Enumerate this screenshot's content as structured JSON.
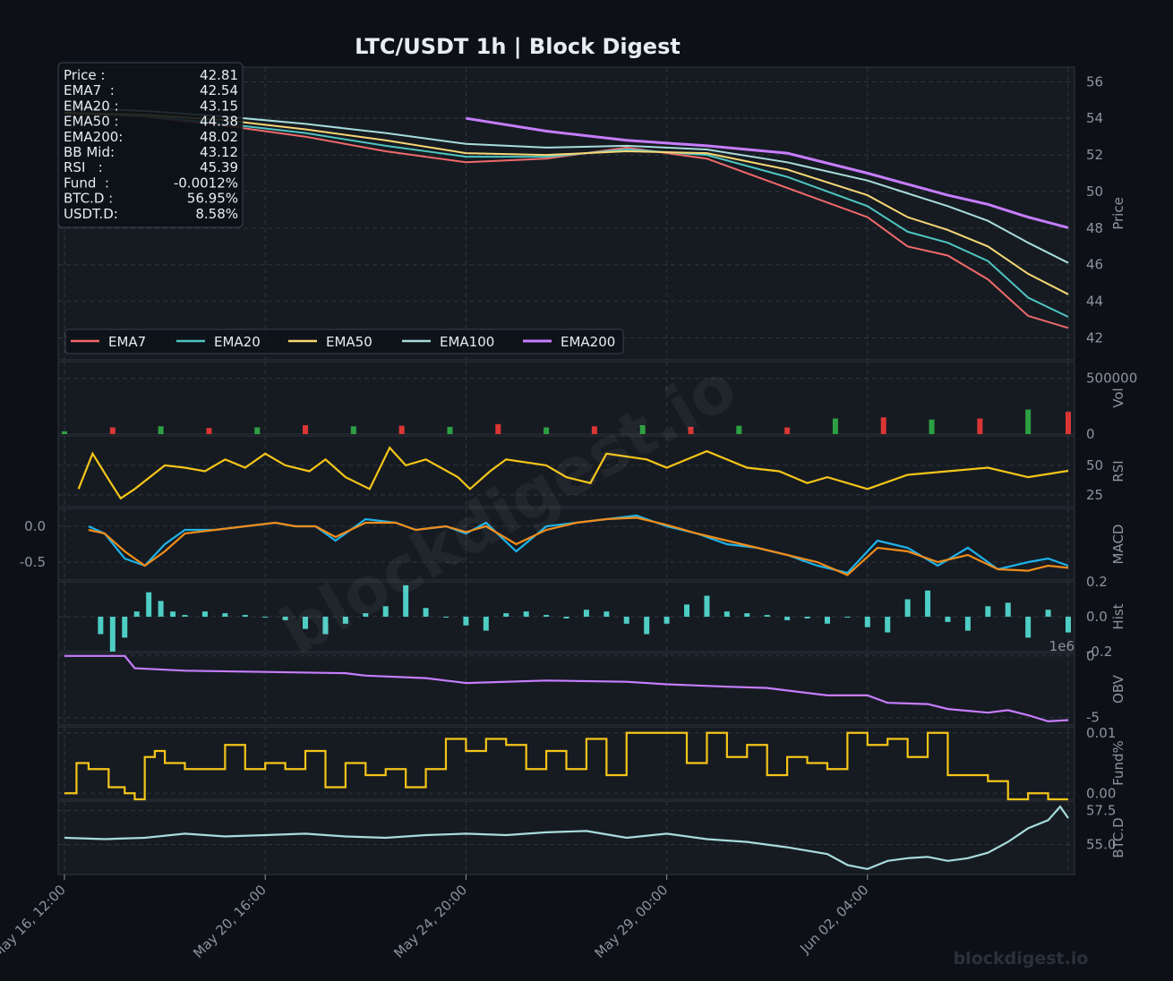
{
  "title": "LTC/USDT  1h  |  Block Digest",
  "watermark": "blockdigest.io",
  "footer_brand": "blockdigest.io",
  "colors": {
    "background": "#0d1117",
    "panel": "#161b22",
    "grid": "#30363d",
    "text": "#8b949e",
    "title": "#e6edf3",
    "ema7": "#f06a6a",
    "ema20": "#4ec5c1",
    "ema50": "#f7d774",
    "ema100": "#a8dcdc",
    "ema200": "#c77dff",
    "rsi": "#f5c518",
    "macd": "#1fb2e8",
    "signal": "#f08c1a",
    "hist": "#4ecdc4",
    "obv": "#c77dff",
    "funding": "#f5c518",
    "btcd": "#a8dcdc",
    "up": "#2ea043",
    "down": "#da3633"
  },
  "info_box": [
    {
      "label": "Price :",
      "value": "42.81"
    },
    {
      "label": "EMA7  :",
      "value": "42.54"
    },
    {
      "label": "EMA20 :",
      "value": "43.15"
    },
    {
      "label": "EMA50 :",
      "value": "44.38"
    },
    {
      "label": "EMA200:",
      "value": "48.02"
    },
    {
      "label": "BB Mid:",
      "value": "43.12"
    },
    {
      "label": "RSI   :",
      "value": "45.39"
    },
    {
      "label": "Fund  :",
      "value": "-0.0012%"
    },
    {
      "label": "BTC.D :",
      "value": "56.95%"
    },
    {
      "label": "USDT.D:",
      "value": "8.58%"
    }
  ],
  "chart_data": [
    {
      "type": "line",
      "panel": "Price",
      "ylabel": "Price",
      "ylim": [
        40.8,
        56.8
      ],
      "yticks": [
        "42",
        "44",
        "46",
        "48",
        "50",
        "52",
        "54",
        "56"
      ],
      "x_range_hours": [
        0,
        500
      ],
      "legend": "bottom-left",
      "series": [
        {
          "name": "EMA7",
          "x": [
            0,
            40,
            80,
            120,
            160,
            200,
            240,
            280,
            320,
            360,
            400,
            420,
            440,
            460,
            480,
            500
          ],
          "values": [
            54.3,
            54.1,
            53.6,
            53.0,
            52.2,
            51.6,
            51.8,
            52.4,
            51.8,
            50.2,
            48.6,
            47.0,
            46.5,
            45.2,
            43.2,
            42.54
          ]
        },
        {
          "name": "EMA20",
          "x": [
            0,
            40,
            80,
            120,
            160,
            200,
            240,
            280,
            320,
            360,
            400,
            420,
            440,
            460,
            480,
            500
          ],
          "values": [
            54.3,
            54.15,
            53.7,
            53.2,
            52.5,
            51.9,
            51.9,
            52.3,
            52.0,
            50.8,
            49.2,
            47.8,
            47.2,
            46.2,
            44.2,
            43.15
          ]
        },
        {
          "name": "EMA50",
          "x": [
            0,
            40,
            80,
            120,
            160,
            200,
            240,
            280,
            320,
            360,
            400,
            420,
            440,
            460,
            480,
            500
          ],
          "values": [
            54.3,
            54.2,
            53.9,
            53.4,
            52.8,
            52.1,
            52.0,
            52.2,
            52.1,
            51.2,
            49.8,
            48.6,
            47.9,
            47.0,
            45.5,
            44.38
          ]
        },
        {
          "name": "EMA100",
          "x": [
            0,
            40,
            80,
            120,
            160,
            200,
            240,
            280,
            320,
            360,
            400,
            420,
            440,
            460,
            480,
            500
          ],
          "values": [
            54.6,
            54.4,
            54.1,
            53.7,
            53.2,
            52.6,
            52.4,
            52.5,
            52.3,
            51.6,
            50.6,
            49.9,
            49.2,
            48.4,
            47.2,
            46.1
          ]
        },
        {
          "name": "EMA200",
          "x": [
            200,
            240,
            280,
            320,
            360,
            400,
            420,
            440,
            460,
            480,
            500
          ],
          "values": [
            54.0,
            53.3,
            52.8,
            52.5,
            52.1,
            51.0,
            50.4,
            49.8,
            49.3,
            48.6,
            48.02
          ]
        }
      ]
    },
    {
      "type": "bar",
      "panel": "Vol",
      "ylabel": "Vol",
      "ylim": [
        0,
        650000
      ],
      "yticks": [
        "0",
        "500000"
      ],
      "x": [
        0,
        24,
        48,
        72,
        96,
        120,
        144,
        168,
        192,
        216,
        240,
        264,
        288,
        312,
        336,
        360,
        384,
        408,
        432,
        456,
        480,
        500
      ],
      "values": [
        25000,
        60000,
        70000,
        55000,
        60000,
        80000,
        70000,
        75000,
        65000,
        90000,
        60000,
        70000,
        80000,
        65000,
        75000,
        60000,
        140000,
        150000,
        130000,
        140000,
        220000,
        200000
      ]
    },
    {
      "type": "line",
      "panel": "RSI",
      "ylabel": "RSI",
      "ylim": [
        15,
        75
      ],
      "yticks": [
        "25",
        "50"
      ],
      "x": [
        7,
        14,
        22,
        28,
        35,
        50,
        60,
        70,
        80,
        90,
        100,
        110,
        122,
        130,
        140,
        152,
        162,
        170,
        180,
        196,
        202,
        212,
        220,
        240,
        250,
        262,
        270,
        290,
        300,
        320,
        340,
        356,
        370,
        380,
        400,
        420,
        440,
        460,
        480,
        500
      ],
      "series": [
        {
          "name": "RSI",
          "values": [
            30,
            60,
            38,
            22,
            30,
            50,
            48,
            45,
            55,
            48,
            60,
            50,
            45,
            55,
            40,
            30,
            65,
            50,
            55,
            40,
            30,
            45,
            55,
            50,
            40,
            35,
            60,
            55,
            48,
            62,
            48,
            45,
            35,
            40,
            30,
            42,
            45,
            48,
            40,
            45.39
          ]
        }
      ]
    },
    {
      "type": "line",
      "panel": "MACD",
      "ylabel": "MACD",
      "ylim": [
        -0.75,
        0.25
      ],
      "yticks": [
        "0.0",
        "-0.5"
      ],
      "x": [
        12,
        20,
        30,
        40,
        50,
        60,
        75,
        90,
        105,
        115,
        125,
        135,
        150,
        165,
        175,
        190,
        200,
        210,
        225,
        240,
        255,
        270,
        285,
        300,
        315,
        330,
        345,
        360,
        375,
        390,
        405,
        420,
        435,
        450,
        465,
        480,
        490,
        500
      ],
      "series": [
        {
          "name": "MACD",
          "values": [
            0.0,
            -0.1,
            -0.45,
            -0.55,
            -0.25,
            -0.05,
            -0.05,
            0.0,
            0.05,
            0.0,
            0.0,
            -0.2,
            0.1,
            0.05,
            -0.05,
            0.0,
            -0.1,
            0.05,
            -0.35,
            0.0,
            0.05,
            0.1,
            0.15,
            0.0,
            -0.1,
            -0.25,
            -0.3,
            -0.4,
            -0.55,
            -0.65,
            -0.2,
            -0.3,
            -0.55,
            -0.3,
            -0.6,
            -0.5,
            -0.45,
            -0.55
          ]
        },
        {
          "name": "Signal",
          "values": [
            -0.05,
            -0.1,
            -0.35,
            -0.55,
            -0.35,
            -0.1,
            -0.05,
            0.0,
            0.05,
            0.0,
            0.0,
            -0.15,
            0.05,
            0.05,
            -0.05,
            0.0,
            -0.08,
            0.0,
            -0.25,
            -0.05,
            0.05,
            0.1,
            0.12,
            0.02,
            -0.1,
            -0.2,
            -0.3,
            -0.4,
            -0.5,
            -0.68,
            -0.3,
            -0.35,
            -0.5,
            -0.4,
            -0.6,
            -0.62,
            -0.55,
            -0.58
          ]
        }
      ]
    },
    {
      "type": "bar",
      "panel": "Hist",
      "ylabel": "Hist",
      "ylim": [
        -0.2,
        0.2
      ],
      "yticks": [
        "0.2",
        "0.0",
        "-0.2"
      ],
      "x": [
        18,
        24,
        30,
        36,
        42,
        48,
        54,
        60,
        70,
        80,
        90,
        100,
        110,
        120,
        130,
        140,
        150,
        160,
        170,
        180,
        190,
        200,
        210,
        220,
        230,
        240,
        250,
        260,
        270,
        280,
        290,
        300,
        310,
        320,
        330,
        340,
        350,
        360,
        370,
        380,
        390,
        400,
        410,
        420,
        430,
        440,
        450,
        460,
        470,
        480,
        490,
        500
      ],
      "values": [
        -0.1,
        -0.2,
        -0.12,
        0.03,
        0.14,
        0.09,
        0.03,
        0.01,
        0.03,
        0.02,
        0.01,
        0.0,
        -0.02,
        -0.07,
        -0.1,
        -0.04,
        0.02,
        0.06,
        0.18,
        0.05,
        0.0,
        -0.05,
        -0.08,
        0.02,
        0.03,
        0.01,
        -0.01,
        0.04,
        0.03,
        -0.04,
        -0.1,
        -0.04,
        0.07,
        0.12,
        0.03,
        0.02,
        0.01,
        -0.02,
        -0.01,
        -0.04,
        0.0,
        -0.06,
        -0.09,
        0.1,
        0.15,
        -0.03,
        -0.08,
        0.06,
        0.08,
        -0.12,
        0.04,
        -0.09
      ]
    },
    {
      "type": "line",
      "panel": "OBV",
      "ylabel": "OBV",
      "ylim": [
        -5.6,
        0.2
      ],
      "yticks": [
        "0",
        "-5"
      ],
      "scale_label": "1e6",
      "x": [
        0,
        30,
        35,
        60,
        100,
        140,
        150,
        180,
        200,
        240,
        280,
        300,
        330,
        350,
        380,
        400,
        410,
        430,
        440,
        460,
        470,
        480,
        490,
        500
      ],
      "series": [
        {
          "name": "OBV",
          "values": [
            0.0,
            0.0,
            -1.0,
            -1.2,
            -1.3,
            -1.4,
            -1.6,
            -1.8,
            -2.2,
            -2.0,
            -2.1,
            -2.3,
            -2.5,
            -2.6,
            -3.2,
            -3.2,
            -3.8,
            -3.9,
            -4.3,
            -4.6,
            -4.4,
            -4.8,
            -5.3,
            -5.2
          ]
        }
      ]
    },
    {
      "type": "line",
      "panel": "Fund%",
      "ylabel": "Fund%",
      "ylim": [
        -0.001,
        0.011
      ],
      "yticks": [
        "0.01",
        "0.00"
      ],
      "x": [
        0,
        3,
        6,
        12,
        15,
        22,
        30,
        35,
        40,
        45,
        50,
        55,
        60,
        70,
        80,
        90,
        100,
        110,
        120,
        130,
        140,
        150,
        160,
        170,
        180,
        190,
        200,
        210,
        220,
        230,
        240,
        250,
        260,
        270,
        280,
        290,
        300,
        310,
        320,
        330,
        340,
        350,
        360,
        370,
        380,
        390,
        400,
        410,
        420,
        430,
        440,
        460,
        470,
        480,
        490,
        500
      ],
      "series": [
        {
          "name": "Fund%",
          "values": [
            0.0,
            0.0,
            0.005,
            0.004,
            0.004,
            0.001,
            0.0,
            -0.001,
            0.006,
            0.007,
            0.005,
            0.005,
            0.004,
            0.004,
            0.008,
            0.004,
            0.005,
            0.004,
            0.007,
            0.001,
            0.005,
            0.003,
            0.004,
            0.001,
            0.004,
            0.009,
            0.007,
            0.009,
            0.008,
            0.004,
            0.007,
            0.004,
            0.009,
            0.003,
            0.01,
            0.01,
            0.01,
            0.005,
            0.01,
            0.006,
            0.008,
            0.003,
            0.006,
            0.005,
            0.004,
            0.01,
            0.008,
            0.009,
            0.006,
            0.01,
            0.003,
            0.002,
            -0.001,
            0.0,
            -0.001,
            -0.001
          ]
        }
      ]
    },
    {
      "type": "line",
      "panel": "BTC.D",
      "ylabel": "BTC.D",
      "ylim": [
        52.8,
        58.2
      ],
      "yticks": [
        "57.5",
        "55.0"
      ],
      "x": [
        0,
        20,
        40,
        60,
        80,
        100,
        120,
        140,
        160,
        180,
        200,
        220,
        240,
        260,
        280,
        300,
        320,
        340,
        360,
        380,
        390,
        400,
        410,
        420,
        430,
        440,
        450,
        460,
        470,
        480,
        490,
        496,
        500
      ],
      "series": [
        {
          "name": "BTC.D",
          "values": [
            55.5,
            55.4,
            55.5,
            55.8,
            55.6,
            55.7,
            55.8,
            55.6,
            55.5,
            55.7,
            55.8,
            55.7,
            55.9,
            56.0,
            55.5,
            55.8,
            55.4,
            55.2,
            54.8,
            54.3,
            53.5,
            53.2,
            53.8,
            54.0,
            54.1,
            53.8,
            54.0,
            54.4,
            55.2,
            56.2,
            56.8,
            57.8,
            56.95
          ]
        }
      ]
    }
  ],
  "x_ticks": [
    "May 16, 12:00",
    "May 20, 16:00",
    "May 24, 20:00",
    "May 29, 00:00",
    "Jun 02, 04:00"
  ]
}
